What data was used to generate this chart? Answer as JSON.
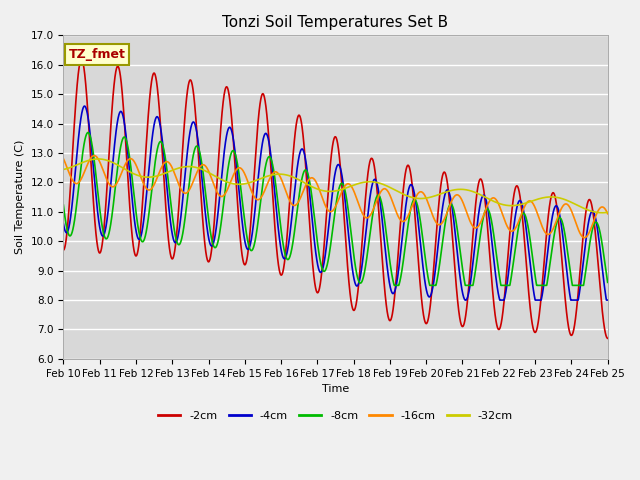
{
  "title": "Tonzi Soil Temperatures Set B",
  "xlabel": "Time",
  "ylabel": "Soil Temperature (C)",
  "ylim": [
    6.0,
    17.0
  ],
  "yticks": [
    6.0,
    7.0,
    8.0,
    9.0,
    10.0,
    11.0,
    12.0,
    13.0,
    14.0,
    15.0,
    16.0,
    17.0
  ],
  "x_labels": [
    "Feb 10",
    "Feb 11",
    "Feb 12",
    "Feb 13",
    "Feb 14",
    "Feb 15",
    "Feb 16",
    "Feb 17",
    "Feb 18",
    "Feb 19",
    "Feb 20",
    "Feb 21",
    "Feb 22",
    "Feb 23",
    "Feb 24",
    "Feb 25"
  ],
  "series": [
    {
      "label": "-2cm",
      "color": "#cc0000",
      "lw": 1.2
    },
    {
      "label": "-4cm",
      "color": "#0000cc",
      "lw": 1.2
    },
    {
      "label": "-8cm",
      "color": "#00bb00",
      "lw": 1.2
    },
    {
      "label": "-16cm",
      "color": "#ff8800",
      "lw": 1.2
    },
    {
      "label": "-32cm",
      "color": "#cccc00",
      "lw": 1.2
    }
  ],
  "annotation_label": "TZ_fmet",
  "plot_bg": "#d8d8d8",
  "fig_bg": "#f0f0f0",
  "grid_color": "#ffffff",
  "title_fontsize": 11,
  "axis_fontsize": 8,
  "tick_fontsize": 7.5,
  "legend_fontsize": 8
}
